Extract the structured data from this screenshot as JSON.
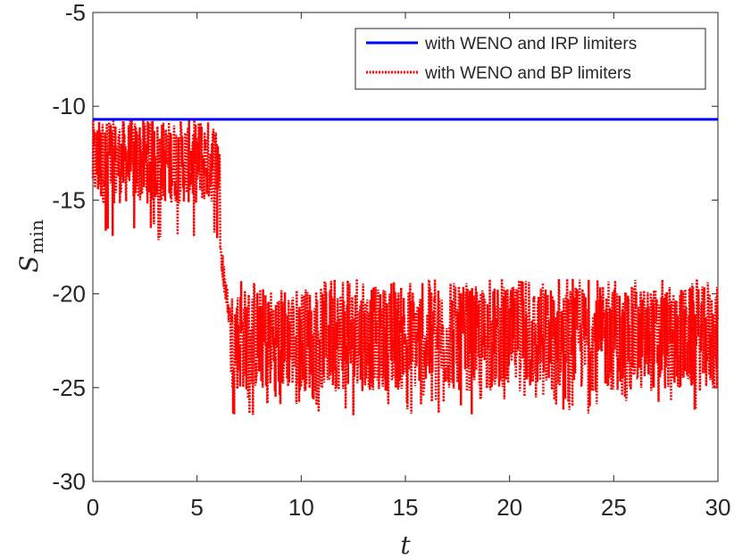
{
  "chart_data": {
    "type": "line",
    "title": "",
    "xlabel": "t",
    "ylabel": {
      "main": "S",
      "sub": "min"
    },
    "xlim": [
      0,
      30
    ],
    "ylim": [
      -30,
      -5
    ],
    "xticks": [
      0,
      5,
      10,
      15,
      20,
      25,
      30
    ],
    "yticks": [
      -5,
      -10,
      -15,
      -20,
      -25,
      -30
    ],
    "xtick_labels": [
      "0",
      "5",
      "10",
      "15",
      "20",
      "25",
      "30"
    ],
    "ytick_labels": [
      "-5",
      "-10",
      "-15",
      "-20",
      "-25",
      "-30"
    ],
    "grid": false,
    "legend_position": "top-right",
    "series": [
      {
        "name": "with WENO and IRP limiters",
        "color": "#0000ff",
        "style": "solid",
        "x": [
          0,
          30
        ],
        "y": [
          -10.7,
          -10.7
        ]
      },
      {
        "name": "with WENO and BP limiters",
        "color": "#ff0000",
        "style": "dotted",
        "segments": [
          {
            "x_range": [
              0,
              6.1
            ],
            "y_band": [
              -15.2,
              -10.7
            ],
            "y_extremes": [
              -17.3,
              -10.7
            ]
          },
          {
            "x_range": [
              6.1,
              6.6
            ],
            "y_band": [
              -21.5,
              -17.5
            ]
          },
          {
            "x_range": [
              6.6,
              30
            ],
            "y_band": [
              -25.2,
              -19.6
            ],
            "y_extremes": [
              -26.5,
              -19.2
            ]
          }
        ]
      }
    ]
  }
}
